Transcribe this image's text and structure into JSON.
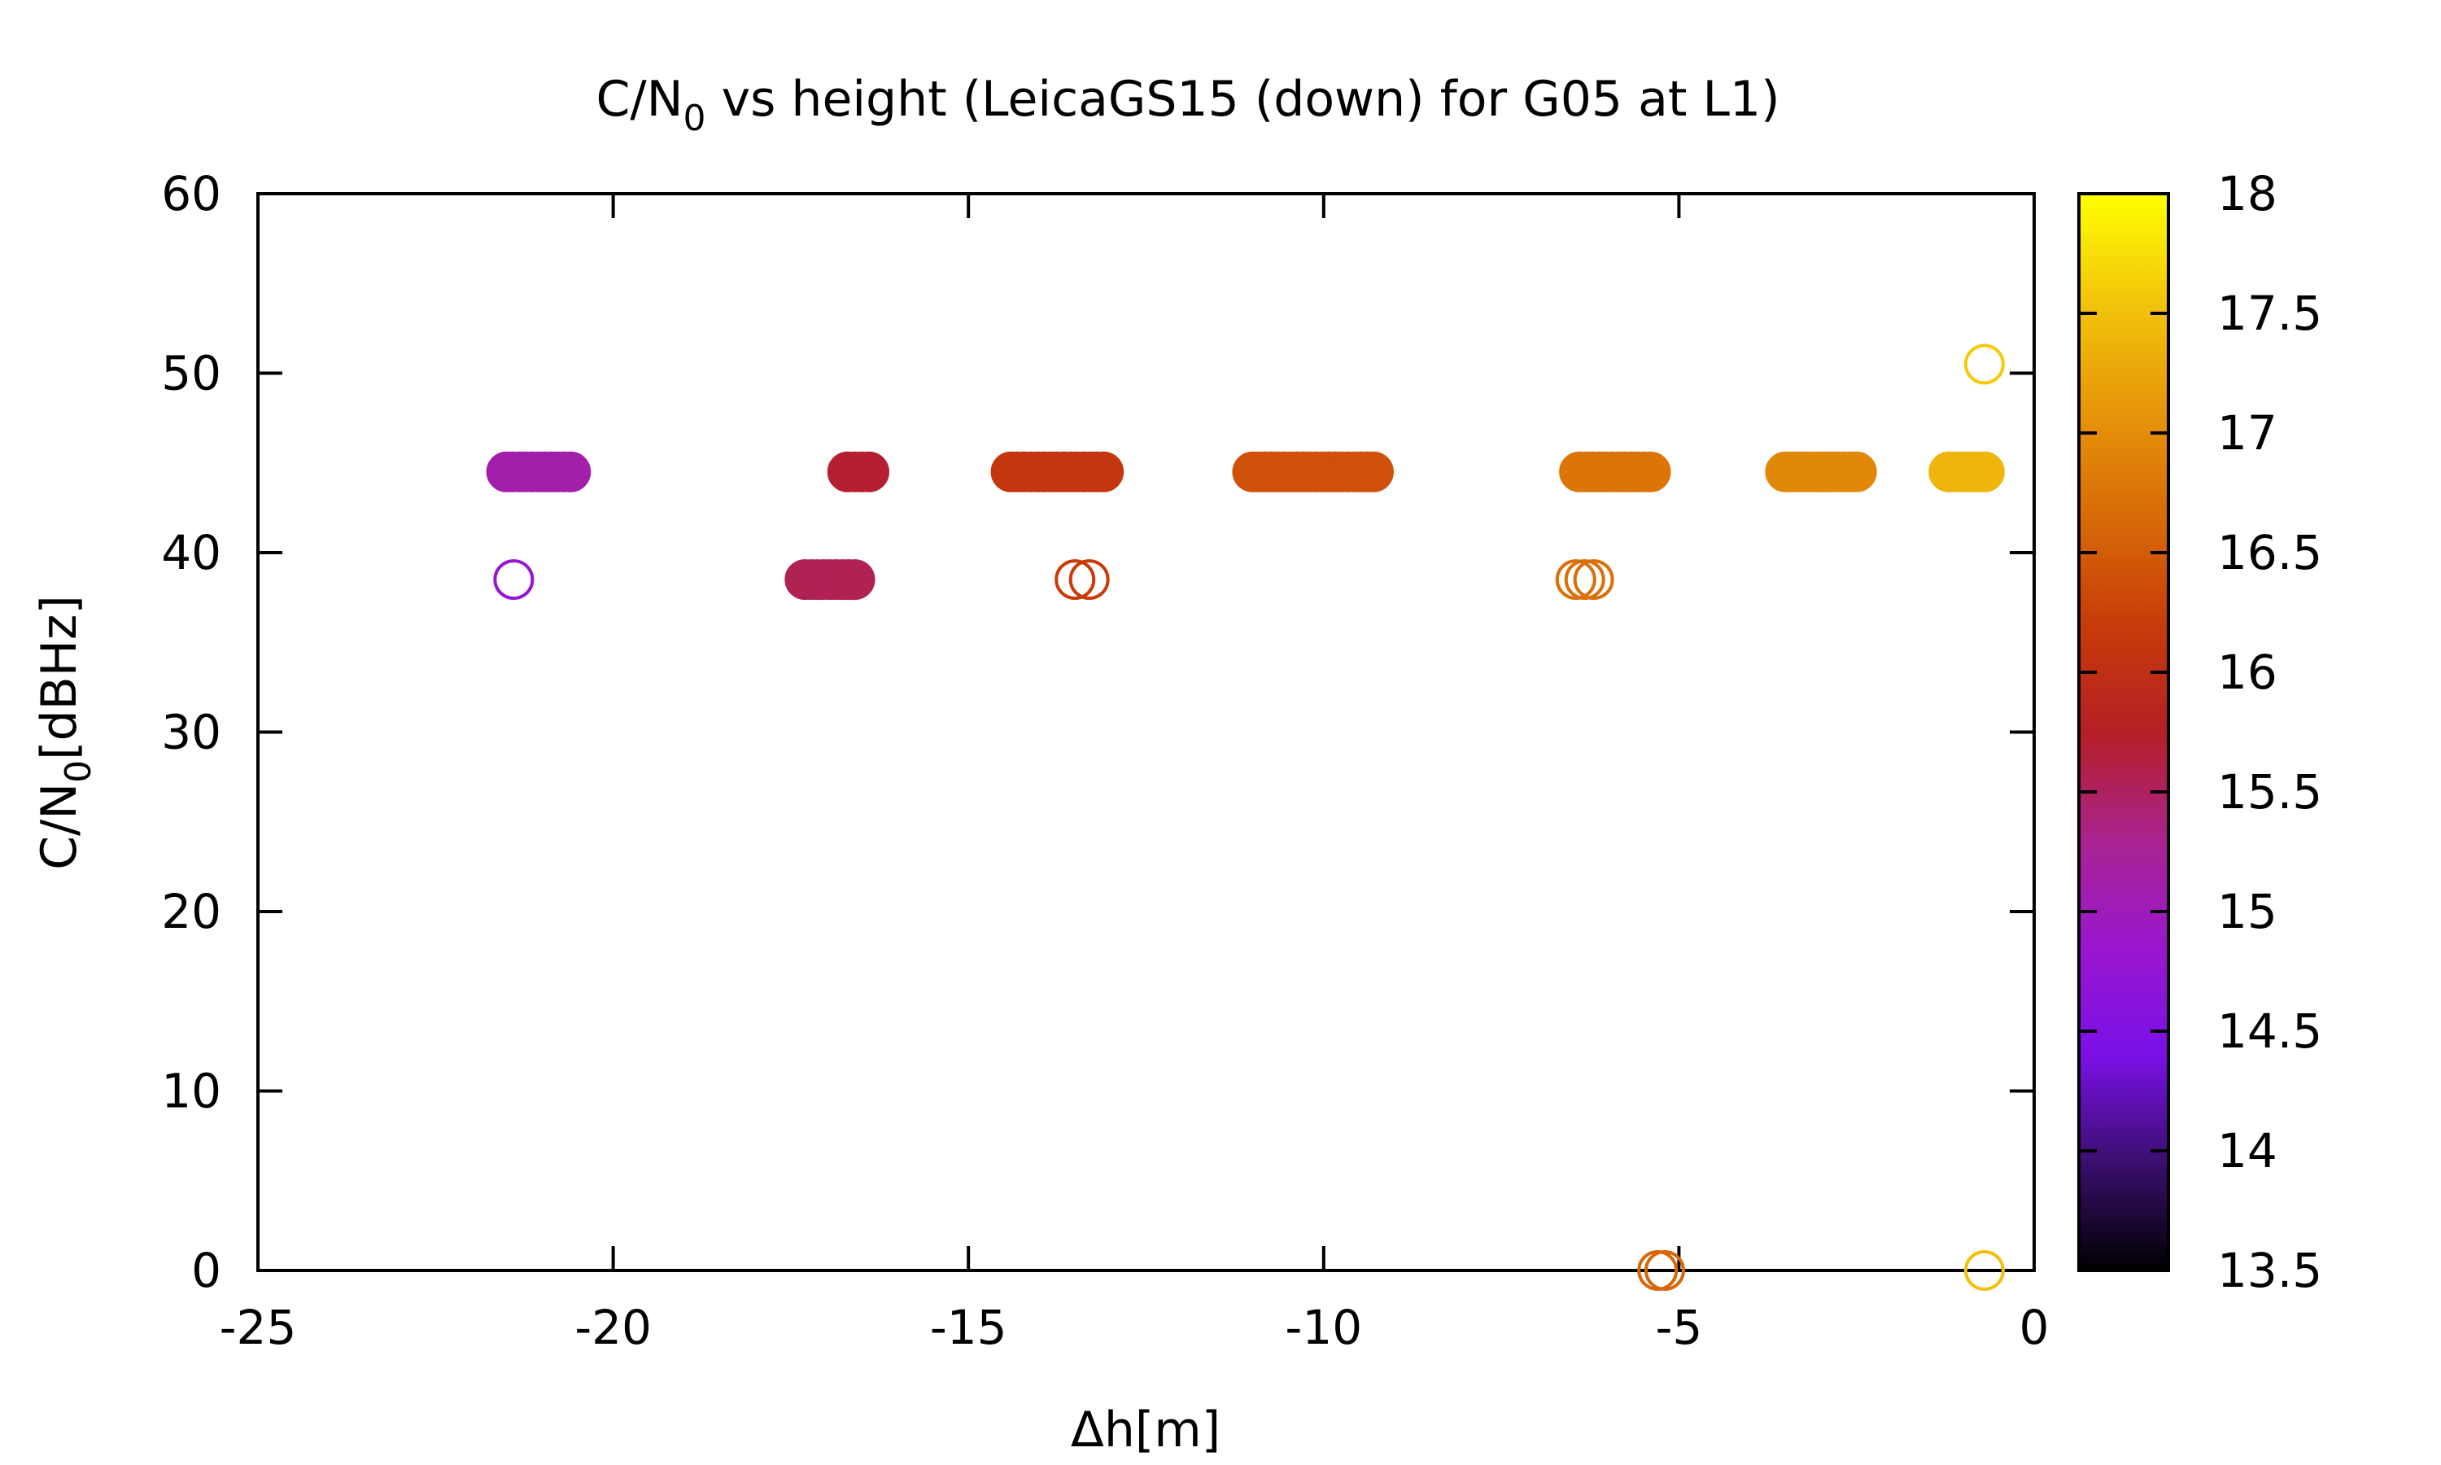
{
  "chart_data": {
    "type": "scatter",
    "title": "C/N",
    "title_sub": "0",
    "title_rest": " vs height (LeicaGS15 (down) for G05 at L1)",
    "xlabel": "Δh[m]",
    "ylabel": "C/N",
    "ylabel_sub": "0",
    "ylabel_rest": "[dBHz]",
    "xlim": [
      -25,
      0
    ],
    "ylim": [
      0,
      60
    ],
    "xticks": [
      -25,
      -20,
      -15,
      -10,
      -5,
      0
    ],
    "yticks": [
      0,
      10,
      20,
      30,
      40,
      50,
      60
    ],
    "grid": false,
    "colorbar": {
      "range": [
        13.5,
        18
      ],
      "ticks": [
        13.5,
        14,
        14.5,
        15,
        15.5,
        16,
        16.5,
        17,
        17.5,
        18
      ],
      "palette_stops": [
        "#000000",
        "#3a0f6e",
        "#7a10e6",
        "#9a17cf",
        "#a8238f",
        "#b61f25",
        "#c73c09",
        "#d86b08",
        "#e6960a",
        "#f2c50b",
        "#ffff00"
      ]
    },
    "series": [
      {
        "x_start": -21.5,
        "x_end": -20.6,
        "y": 44.5,
        "c": 15.1,
        "filled": true
      },
      {
        "x_start": -21.4,
        "x_end": -21.4,
        "y": 38.5,
        "c": 14.8,
        "filled": false
      },
      {
        "x_start": -17.3,
        "x_end": -16.6,
        "y": 38.5,
        "c": 15.55,
        "filled": true
      },
      {
        "x_start": -16.7,
        "x_end": -16.4,
        "y": 44.5,
        "c": 15.7,
        "filled": true
      },
      {
        "x_start": -14.4,
        "x_end": -13.1,
        "y": 44.5,
        "c": 16.1,
        "filled": true
      },
      {
        "x_start": -13.5,
        "x_end": -13.3,
        "y": 38.5,
        "c": 16.2,
        "filled": false
      },
      {
        "x_start": -11.0,
        "x_end": -9.3,
        "y": 44.5,
        "c": 16.4,
        "filled": true
      },
      {
        "x_start": -6.4,
        "x_end": -5.4,
        "y": 44.5,
        "c": 16.75,
        "filled": true
      },
      {
        "x_start": -6.45,
        "x_end": -6.2,
        "y": 38.5,
        "c": 16.7,
        "filled": false
      },
      {
        "x_start": -5.3,
        "x_end": -5.2,
        "y": 0,
        "c": 16.6,
        "filled": false
      },
      {
        "x_start": -3.5,
        "x_end": -2.5,
        "y": 44.5,
        "c": 16.95,
        "filled": true
      },
      {
        "x_start": -1.2,
        "x_end": -0.7,
        "y": 44.5,
        "c": 17.4,
        "filled": true
      },
      {
        "x_start": -0.7,
        "x_end": -0.7,
        "y": 50.5,
        "c": 17.6,
        "filled": false
      },
      {
        "x_start": -0.7,
        "x_end": -0.7,
        "y": 0,
        "c": 17.5,
        "filled": false
      }
    ]
  }
}
